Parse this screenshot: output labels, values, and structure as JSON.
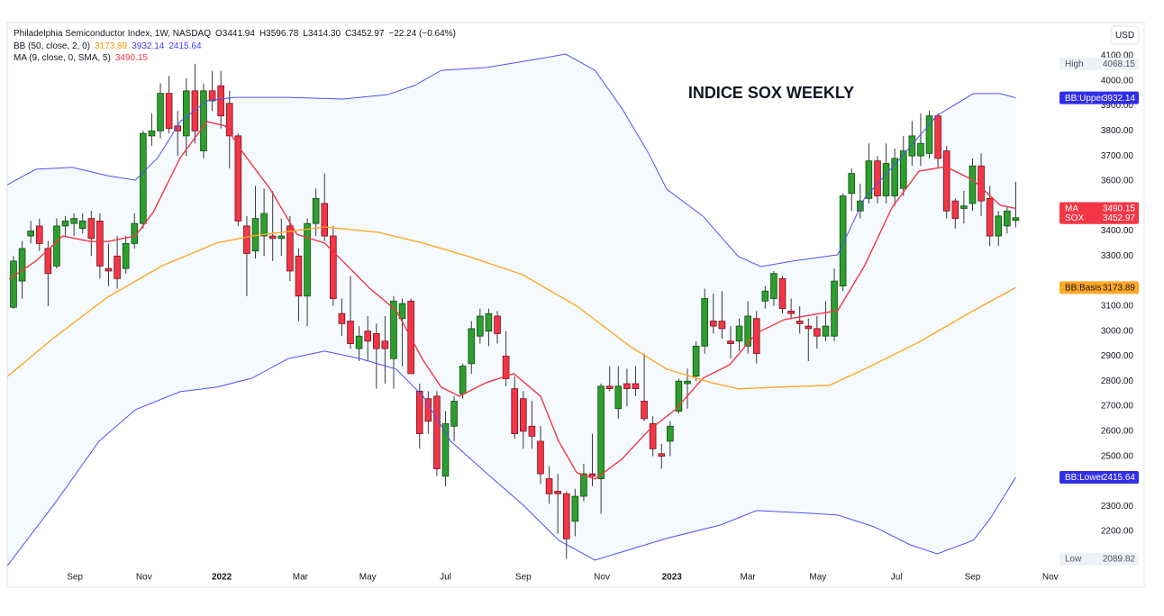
{
  "chart_data": {
    "type": "candlestick",
    "title": "INDICE SOX WEEKLY",
    "currency": "USD",
    "header": [
      [
        {
          "text": "Philadelphia Semiconductor Index, 1W, NASDAQ"
        },
        {
          "text": "O3441.94"
        },
        {
          "text": "H3596.78"
        },
        {
          "text": "L3414.30"
        },
        {
          "text": "C3452.97"
        },
        {
          "text": "−22.24 (−0.64%)"
        }
      ],
      [
        {
          "text": "BB (50, close, 2, 0)"
        },
        {
          "text": "3173.89",
          "color": "#ff9800"
        },
        {
          "text": "3932.14",
          "color": "#3f3ff5"
        },
        {
          "text": "2415.64",
          "color": "#3f3ff5"
        }
      ],
      [
        {
          "text": "MA (9, close, 0, SMA, 5)"
        },
        {
          "text": "3490.15",
          "color": "#f23645"
        }
      ]
    ],
    "up_color": "#2e9e2e",
    "down_color": "#f23645",
    "grid": false,
    "x": [
      0,
      1,
      2,
      3,
      4,
      5,
      6,
      7,
      8,
      9,
      10,
      11,
      12,
      13,
      14,
      15,
      16,
      17,
      18,
      19,
      20,
      21,
      22,
      23,
      24,
      25,
      26,
      27,
      28,
      29,
      30,
      31,
      32,
      33,
      34,
      35,
      36,
      37,
      38,
      39,
      40,
      41,
      42,
      43,
      44,
      45,
      46,
      47,
      48,
      49,
      50,
      51,
      52,
      53,
      54,
      55,
      56,
      57,
      58,
      59,
      60,
      61,
      62,
      63,
      64,
      65,
      66,
      67,
      68,
      69,
      70,
      71,
      72,
      73,
      74,
      75,
      76,
      77,
      78,
      79,
      80,
      81,
      82,
      83,
      84,
      85,
      86,
      87,
      88,
      89,
      90,
      91,
      92,
      93,
      94,
      95,
      96,
      97,
      98,
      99,
      100,
      101,
      102,
      103,
      104,
      105,
      106,
      107,
      108,
      109,
      110,
      111,
      112,
      113,
      114,
      115,
      116
    ],
    "open": [
      3095,
      3200,
      3380,
      3420,
      3330,
      3260,
      3420,
      3430,
      3410,
      3450,
      3440,
      3250,
      3300,
      3250,
      3350,
      3430,
      3780,
      3800,
      3950,
      3820,
      3780,
      3960,
      3720,
      3960,
      3980,
      3910,
      3780,
      3420,
      3320,
      3380,
      3380,
      3370,
      3420,
      3300,
      3140,
      3430,
      3510,
      3380,
      3070,
      3040,
      2930,
      3000,
      2990,
      2960,
      2890,
      3050,
      3120,
      2760,
      2730,
      2740,
      2420,
      2620,
      2750,
      2870,
      2980,
      3000,
      3060,
      2900,
      2770,
      2730,
      2620,
      2560,
      2410,
      2360,
      2350,
      2240,
      2340,
      2430,
      2410,
      2780,
      2690,
      2790,
      2790,
      2720,
      2630,
      2510,
      2560,
      2680,
      2790,
      2820,
      2940,
      3040,
      3040,
      2960,
      2960,
      2940,
      3050,
      3120,
      3130,
      3210,
      3080,
      3040,
      3020,
      3010,
      2980,
      2980,
      3180,
      3550,
      3480,
      3530,
      3680,
      3540,
      3540,
      3570,
      3700,
      3700,
      3710,
      3860,
      3720,
      3520,
      3490,
      3510,
      3660,
      3530,
      3380,
      3420,
      3441.94
    ],
    "high": [
      3300,
      3360,
      3440,
      3450,
      3360,
      3450,
      3460,
      3470,
      3470,
      3480,
      3470,
      3350,
      3380,
      3380,
      3470,
      3800,
      3870,
      3990,
      4020,
      3880,
      4010,
      4068.15,
      3990,
      4040,
      4040,
      3960,
      3790,
      3460,
      3580,
      3570,
      3560,
      3450,
      3460,
      3330,
      3450,
      3570,
      3630,
      3420,
      3130,
      3220,
      3020,
      3060,
      3030,
      3060,
      3140,
      3130,
      3130,
      2790,
      2760,
      2760,
      2680,
      2740,
      2870,
      3040,
      3090,
      3090,
      3080,
      3000,
      2820,
      2760,
      2720,
      2620,
      2460,
      2430,
      2360,
      2370,
      2470,
      2590,
      2790,
      2860,
      2860,
      2850,
      2860,
      2910,
      2660,
      2550,
      2640,
      2810,
      2850,
      2960,
      3170,
      3150,
      3160,
      3020,
      3050,
      3120,
      3080,
      3180,
      3240,
      3220,
      3130,
      3100,
      3050,
      3060,
      3120,
      3250,
      3550,
      3650,
      3590,
      3750,
      3700,
      3750,
      3730,
      3780,
      3840,
      3870,
      3880,
      3870,
      3740,
      3530,
      3560,
      3690,
      3710,
      3580,
      3480,
      3500,
      3596.78
    ],
    "low": [
      3090,
      3130,
      3350,
      3320,
      3100,
      3250,
      3380,
      3380,
      3390,
      3300,
      3210,
      3180,
      3170,
      3230,
      3330,
      3410,
      3740,
      3770,
      3790,
      3700,
      3700,
      3750,
      3690,
      3880,
      3810,
      3650,
      3420,
      3140,
      3290,
      3300,
      3280,
      3300,
      3200,
      3040,
      3020,
      3380,
      3360,
      3100,
      2980,
      2930,
      2880,
      2880,
      2770,
      2790,
      2770,
      2860,
      2830,
      2530,
      2590,
      2420,
      2380,
      2560,
      2730,
      2830,
      2950,
      2940,
      2950,
      2780,
      2570,
      2530,
      2530,
      2390,
      2310,
      2190,
      2089.82,
      2180,
      2320,
      2380,
      2270,
      2760,
      2650,
      2700,
      2740,
      2640,
      2500,
      2450,
      2500,
      2670,
      2690,
      2800,
      2910,
      2990,
      2970,
      2890,
      2920,
      2910,
      2870,
      3090,
      3100,
      3070,
      3050,
      2990,
      2880,
      2930,
      2960,
      2960,
      3160,
      3480,
      3450,
      3510,
      3510,
      3510,
      3500,
      3540,
      3660,
      3660,
      3690,
      3650,
      3450,
      3410,
      3430,
      3480,
      3460,
      3340,
      3340,
      3390,
      3414.3
    ],
    "close": [
      3280,
      3330,
      3400,
      3350,
      3230,
      3420,
      3440,
      3450,
      3440,
      3370,
      3260,
      3240,
      3210,
      3350,
      3430,
      3790,
      3800,
      3950,
      3810,
      3800,
      3960,
      3800,
      3960,
      3920,
      3860,
      3780,
      3440,
      3310,
      3450,
      3470,
      3370,
      3380,
      3240,
      3140,
      3430,
      3530,
      3380,
      3130,
      3030,
      2950,
      2980,
      2960,
      2930,
      2930,
      3120,
      3110,
      2830,
      2590,
      2640,
      2450,
      2630,
      2720,
      2860,
      3010,
      3060,
      3070,
      2990,
      2810,
      2590,
      2600,
      2580,
      2430,
      2350,
      2350,
      2170,
      2340,
      2430,
      2420,
      2780,
      2770,
      2780,
      2770,
      2770,
      2650,
      2530,
      2500,
      2620,
      2800,
      2800,
      2940,
      3130,
      3020,
      3010,
      2950,
      3020,
      3060,
      2910,
      3160,
      3230,
      3090,
      3070,
      3030,
      3010,
      2980,
      3020,
      3200,
      3540,
      3630,
      3520,
      3680,
      3540,
      3670,
      3690,
      3720,
      3780,
      3750,
      3860,
      3690,
      3480,
      3450,
      3500,
      3660,
      3520,
      3380,
      3460,
      3480,
      3452.97
    ],
    "lines": [
      {
        "name": "BB:Upper",
        "color": "#5050f5",
        "badge_color": "#2f2fe8",
        "badge_text": "#ffffff",
        "end_label": "3932.14",
        "x": [
          -0.7,
          2.6,
          6.8,
          10.9,
          14.1,
          16.7,
          19.3,
          22.4,
          25.5,
          31.8,
          38.1,
          43.3,
          46.4,
          49.5,
          54.7,
          61.0,
          63.9,
          67.3,
          70.4,
          73.5,
          75.6,
          79.8,
          83.9,
          86.5,
          90.2,
          95.4,
          98.5,
          102.7,
          106.9,
          111.1,
          114.2,
          116
        ],
        "values": [
          3585,
          3647,
          3654,
          3621,
          3603,
          3693,
          3837,
          3920,
          3934,
          3934,
          3927,
          3945,
          3981,
          4042,
          4053,
          4089,
          4107,
          4042,
          3891,
          3711,
          3567,
          3459,
          3298,
          3258,
          3280,
          3305,
          3531,
          3693,
          3862,
          3949,
          3949,
          3932.14
        ]
      },
      {
        "name": "MA",
        "color": "#f23645",
        "badge_color": "#f23645",
        "badge_text": "#ffffff",
        "end_label": "3490.15",
        "x": [
          -0.5,
          2.6,
          5.7,
          8.9,
          10.9,
          14.1,
          16.2,
          19.3,
          22.4,
          24.5,
          26.6,
          29.7,
          32.8,
          36.0,
          38.1,
          41.2,
          44.3,
          47.4,
          49.5,
          51.6,
          54.7,
          57.9,
          61.0,
          63.1,
          65.2,
          67.3,
          70.4,
          73.5,
          76.6,
          79.8,
          82.9,
          86.0,
          89.2,
          92.3,
          95.4,
          98.5,
          101.7,
          104.8,
          107.9,
          111.1,
          114.2,
          116
        ],
        "values": [
          3208,
          3280,
          3380,
          3358,
          3358,
          3380,
          3477,
          3693,
          3837,
          3820,
          3711,
          3568,
          3387,
          3352,
          3280,
          3172,
          3082,
          2884,
          2776,
          2740,
          2794,
          2830,
          2740,
          2560,
          2434,
          2409,
          2488,
          2603,
          2686,
          2812,
          2866,
          2992,
          3046,
          3064,
          3082,
          3261,
          3495,
          3639,
          3657,
          3603,
          3503,
          3490.15
        ]
      },
      {
        "name": "BB:Basis",
        "color": "#ffa726",
        "badge_color": "#ffa726",
        "badge_text": "#131722",
        "end_label": "3173.89",
        "x": [
          -0.7,
          4.7,
          10.9,
          17.2,
          23.5,
          27.6,
          36.0,
          42.2,
          47.4,
          52.7,
          58.9,
          65.2,
          71.4,
          75.6,
          80.8,
          83.9,
          88.1,
          94.4,
          98.5,
          104.8,
          111.1,
          116
        ],
        "values": [
          2819,
          2974,
          3136,
          3261,
          3352,
          3380,
          3416,
          3395,
          3352,
          3298,
          3226,
          3100,
          2938,
          2848,
          2794,
          2769,
          2776,
          2783,
          2848,
          2956,
          3082,
          3173.89
        ]
      },
      {
        "name": "BB:Lower",
        "color": "#5050f5",
        "badge_color": "#2f2fe8",
        "badge_text": "#ffffff",
        "end_label": "2415.64",
        "x": [
          -0.7,
          4.7,
          9.9,
          14.1,
          19.3,
          23.5,
          27.6,
          31.8,
          36.0,
          40.1,
          44.3,
          47.4,
          50.6,
          54.7,
          58.9,
          63.1,
          67.3,
          71.4,
          75.6,
          81.9,
          86.0,
          92.3,
          95.4,
          99.6,
          103.8,
          106.9,
          111.1,
          113.1,
          116
        ],
        "values": [
          2063,
          2308,
          2560,
          2686,
          2758,
          2776,
          2812,
          2890,
          2920,
          2890,
          2848,
          2740,
          2560,
          2434,
          2308,
          2164,
          2085,
          2128,
          2172,
          2226,
          2283,
          2272,
          2265,
          2218,
          2146,
          2110,
          2164,
          2254,
          2415.64
        ]
      }
    ],
    "last_label": {
      "name": "SOX",
      "value_label": "3452.97",
      "color": "#f23645"
    },
    "high_label": {
      "name": "High",
      "value_label": "4068.15"
    },
    "low_label": {
      "name": "Low",
      "value_label": "2089.82"
    },
    "xlim": [
      -0.73,
      120.96
    ],
    "xticks": [
      {
        "value": 7.1,
        "label": "Sep"
      },
      {
        "value": 15.1,
        "label": "Nov"
      },
      {
        "value": 24.1,
        "label": "2022"
      },
      {
        "value": 33.2,
        "label": "Mar"
      },
      {
        "value": 41.0,
        "label": "May"
      },
      {
        "value": 50.0,
        "label": "Jul"
      },
      {
        "value": 59.0,
        "label": "Sep"
      },
      {
        "value": 68.1,
        "label": "Nov"
      },
      {
        "value": 76.2,
        "label": "2023"
      },
      {
        "value": 85.0,
        "label": "Mar"
      },
      {
        "value": 93.1,
        "label": "May"
      },
      {
        "value": 102.2,
        "label": "Jul"
      },
      {
        "value": 111.0,
        "label": "Sep"
      },
      {
        "value": 120.0,
        "label": "Nov"
      }
    ],
    "ylim": [
      2056,
      4233
    ],
    "yticks": [
      {
        "value": 2200,
        "label": "2200.00"
      },
      {
        "value": 2300,
        "label": "2300.00"
      },
      {
        "value": 2500,
        "label": "2500.00"
      },
      {
        "value": 2600,
        "label": "2600.00"
      },
      {
        "value": 2700,
        "label": "2700.00"
      },
      {
        "value": 2800,
        "label": "2800.00"
      },
      {
        "value": 2900,
        "label": "2900.00"
      },
      {
        "value": 3000,
        "label": "3000.00"
      },
      {
        "value": 3100,
        "label": "3100.00"
      },
      {
        "value": 3300,
        "label": "3300.00"
      },
      {
        "value": 3400,
        "label": "3400.00"
      },
      {
        "value": 3600,
        "label": "3600.00"
      },
      {
        "value": 3700,
        "label": "3700.00"
      },
      {
        "value": 3800,
        "label": "3800.00"
      },
      {
        "value": 3900,
        "label": "3900.00"
      },
      {
        "value": 4000,
        "label": "4000.00"
      },
      {
        "value": 4100,
        "label": "4100.00"
      }
    ]
  }
}
